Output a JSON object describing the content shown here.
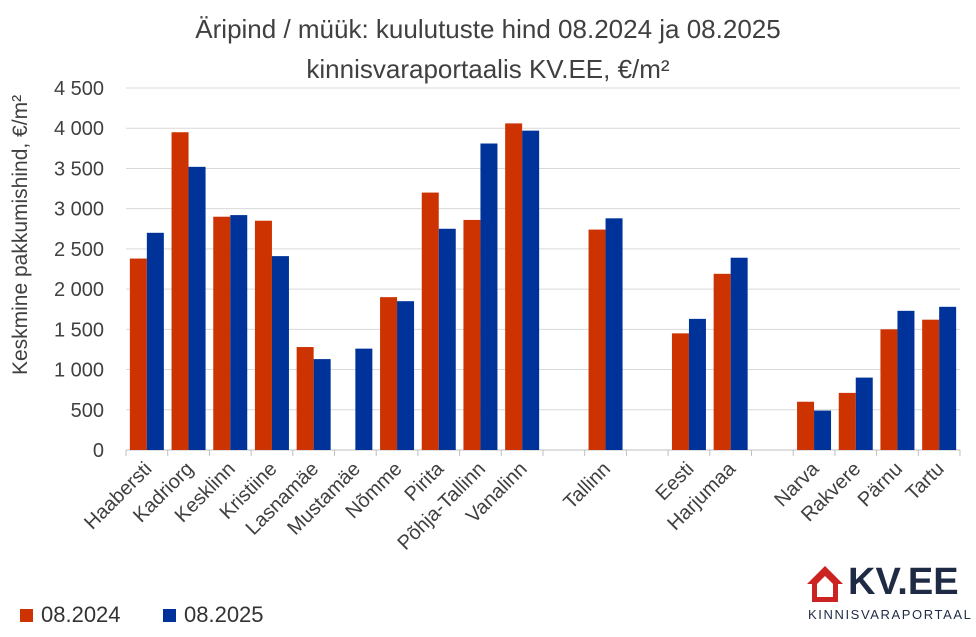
{
  "chart_data": {
    "type": "bar",
    "title": [
      "Äripind / müük: kuulutuste hind 08.2024 ja 08.2025",
      "kinnisvaraportaalis KV.EE, €/m²"
    ],
    "ylabel": "Keskmine pakkumishind, €/m²",
    "xlabel": "",
    "ylim": [
      0,
      4500
    ],
    "ytick_values": [
      0,
      500,
      1000,
      1500,
      2000,
      2500,
      3000,
      3500,
      4000,
      4500
    ],
    "ytick_labels": [
      "0",
      "500",
      "1 000",
      "1 500",
      "2 000",
      "2 500",
      "3 000",
      "3 500",
      "4 000",
      "4 500"
    ],
    "grid": true,
    "legend_position": "bottom-left",
    "categories": [
      "Haabersti",
      "Kadriorg",
      "Kesklinn",
      "Kristiine",
      "Lasnamäe",
      "Mustamäe",
      "Nõmme",
      "Pirita",
      "Põhja-Tallinn",
      "Vanalinn",
      "",
      "Tallinn",
      "",
      "Eesti",
      "Harjumaa",
      "",
      "Narva",
      "Rakvere",
      "Pärnu",
      "Tartu"
    ],
    "series": [
      {
        "name": "08.2024",
        "color": "#CC3300",
        "values": [
          2380,
          3950,
          2900,
          2850,
          1280,
          null,
          1900,
          3200,
          2860,
          4060,
          null,
          2740,
          null,
          1450,
          2190,
          null,
          600,
          710,
          1500,
          1620
        ]
      },
      {
        "name": "08.2025",
        "color": "#003399",
        "values": [
          2700,
          3520,
          2920,
          2410,
          1130,
          1260,
          1850,
          2750,
          3810,
          3970,
          null,
          2880,
          null,
          1630,
          2390,
          null,
          490,
          900,
          1730,
          1780
        ]
      }
    ]
  },
  "logo": {
    "brand": "KV.EE",
    "tagline": "KINNISVARAPORTAAL",
    "brand_color": "#1f2a44",
    "accent_color": "#CC2222"
  }
}
